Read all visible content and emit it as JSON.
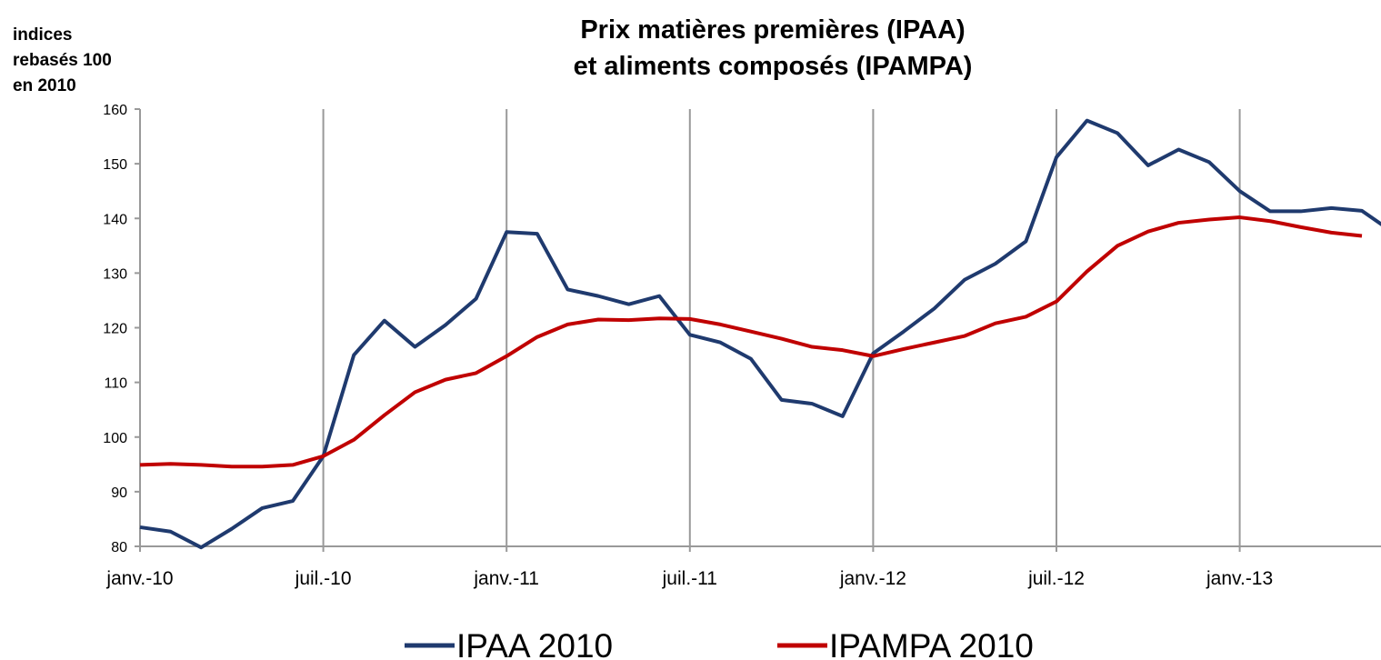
{
  "chart_data": {
    "type": "line",
    "title": [
      "Prix matières premières (IPAA)",
      "et aliments composés (IPAMPA)"
    ],
    "y_label": [
      "indices",
      "rebasés 100",
      "en 2010"
    ],
    "categories": [
      "janv.-10",
      null,
      null,
      null,
      null,
      null,
      "juil.-10",
      null,
      null,
      null,
      null,
      null,
      "janv.-11",
      null,
      null,
      null,
      null,
      null,
      "juil.-11",
      null,
      null,
      null,
      null,
      null,
      "janv.-12",
      null,
      null,
      null,
      null,
      null,
      "juil.-12",
      null,
      null,
      null,
      null,
      null,
      "janv.-13",
      null,
      null,
      null,
      null,
      null
    ],
    "series": [
      {
        "name": "IPAA 2010",
        "color": "#1f3a6e",
        "values": [
          83.5,
          82.7,
          79.8,
          83.2,
          87,
          88.3,
          96.5,
          115,
          121.3,
          116.5,
          120.5,
          125.3,
          137.5,
          137.2,
          127,
          125.8,
          124.3,
          125.8,
          118.7,
          117.3,
          114.3,
          106.8,
          106.1,
          103.8,
          115.3,
          119.3,
          123.5,
          128.8,
          131.7,
          135.8,
          151.2,
          157.9,
          155.6,
          149.7,
          152.6,
          150.3,
          145,
          141.3,
          141.3,
          141.9,
          141.4,
          137.5
        ]
      },
      {
        "name": "IPAMPA 2010",
        "color": "#c00000",
        "values": [
          94.9,
          95.1,
          94.9,
          94.6,
          94.6,
          94.9,
          96.5,
          99.5,
          104,
          108.2,
          110.5,
          111.7,
          114.8,
          118.3,
          120.6,
          121.5,
          121.4,
          121.7,
          121.6,
          120.6,
          119.3,
          118,
          116.5,
          115.9,
          114.8,
          116.1,
          117.3,
          118.5,
          120.8,
          122,
          124.8,
          130.3,
          135,
          137.6,
          139.2,
          139.8,
          140.2,
          139.5,
          138.4,
          137.4,
          136.8,
          null
        ]
      }
    ],
    "ylim": [
      80,
      160
    ],
    "yticks": [
      80,
      90,
      100,
      110,
      120,
      130,
      140,
      150,
      160
    ],
    "grid": "x",
    "legend": "bottom"
  }
}
